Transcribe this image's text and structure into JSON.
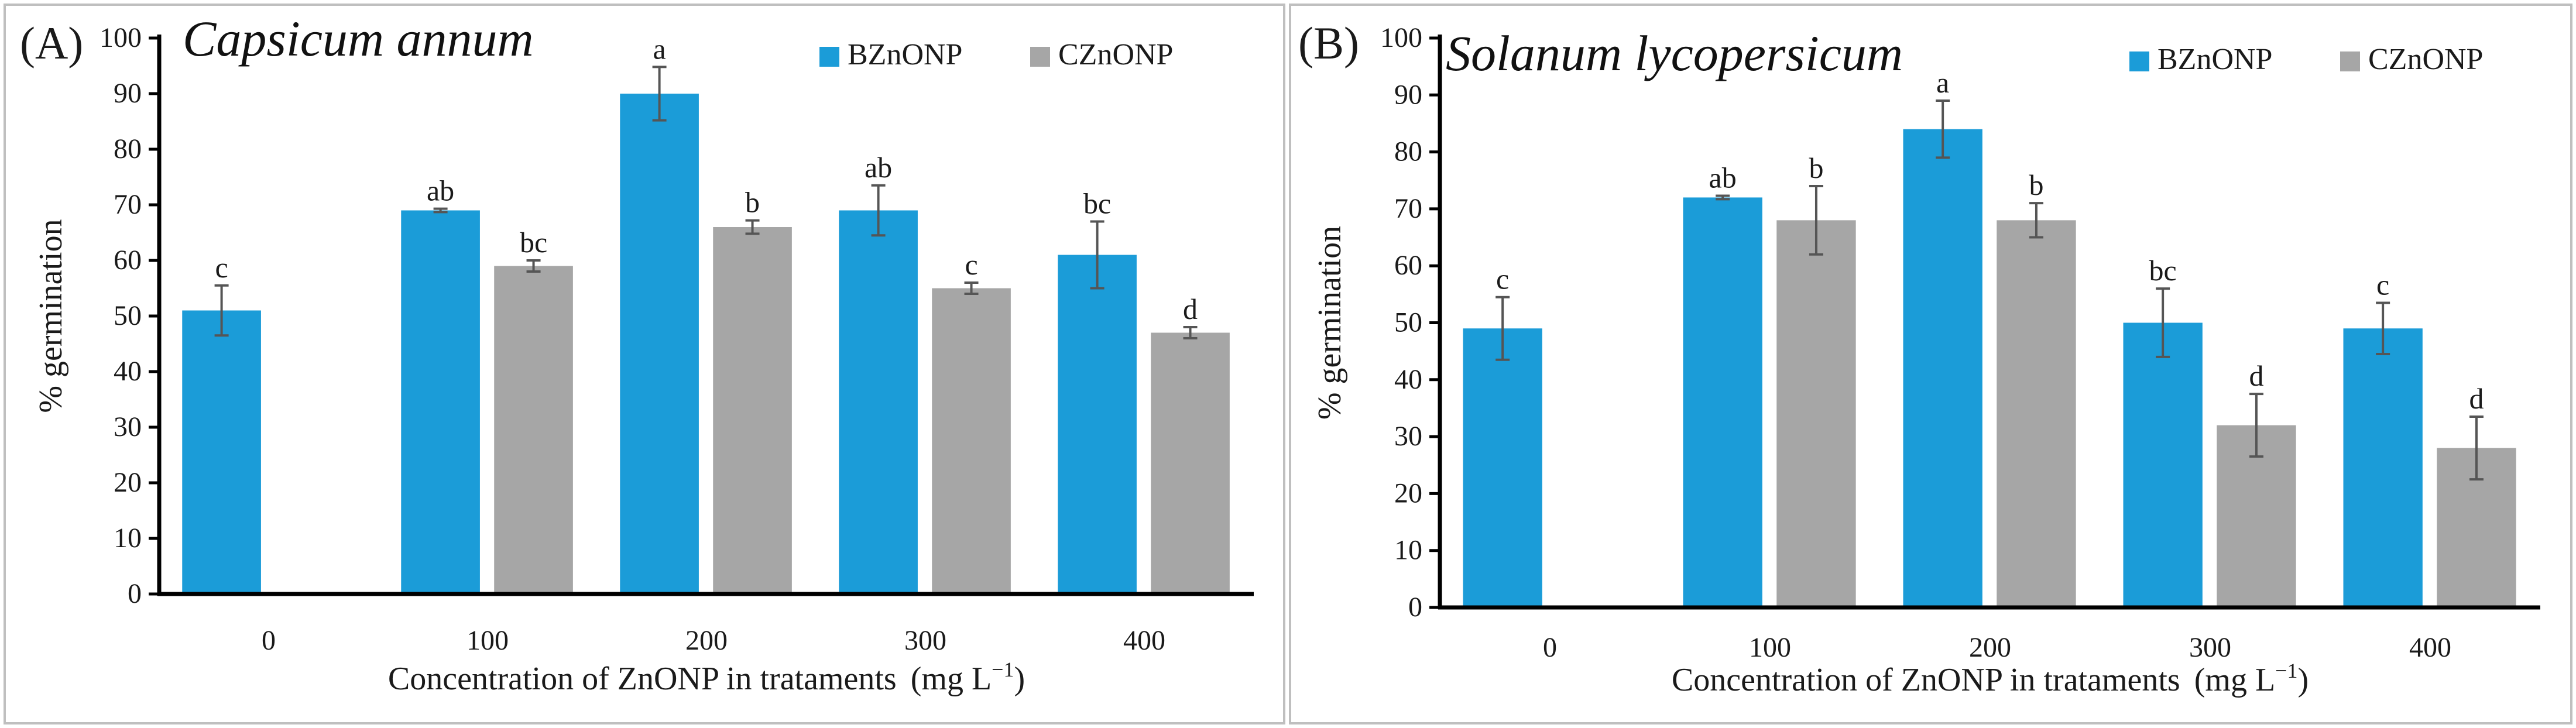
{
  "chart_data": [
    {
      "type": "bar",
      "panel_label": "(A)",
      "title": "Capsicum annum",
      "xlabel": "Concentration of ZnONP in trataments",
      "xlabel_unit": "(mg L",
      "xlabel_unit_sup": "−1",
      "xlabel_unit_close": ")",
      "ylabel": "% germination",
      "ylim": [
        0,
        100
      ],
      "yticks": [
        "0",
        "10",
        "20",
        "30",
        "40",
        "50",
        "60",
        "70",
        "80",
        "90",
        "100"
      ],
      "grid": false,
      "legend_position": "top-right",
      "categories": [
        "0",
        "100",
        "200",
        "300",
        "400"
      ],
      "series": [
        {
          "name": "BZnONP",
          "color": "#1b9cd8",
          "values": [
            51,
            69,
            90,
            69,
            61
          ],
          "errors": [
            4.5,
            0.3,
            4.8,
            4.5,
            6.0
          ],
          "letters": [
            "c",
            "ab",
            "a",
            "ab",
            "bc"
          ]
        },
        {
          "name": "CZnONP",
          "color": "#a6a6a6",
          "values": [
            null,
            59,
            66,
            55,
            47
          ],
          "errors": [
            null,
            1.0,
            1.2,
            1.0,
            1.0
          ],
          "letters": [
            null,
            "bc",
            "b",
            "c",
            "d"
          ]
        }
      ]
    },
    {
      "type": "bar",
      "panel_label": "(B)",
      "title": "Solanum lycopersicum",
      "xlabel": "Concentration of ZnONP in trataments",
      "xlabel_unit": "(mg L",
      "xlabel_unit_sup": "−1",
      "xlabel_unit_close": ")",
      "ylabel": "% germination",
      "ylim": [
        0,
        100
      ],
      "yticks": [
        "0",
        "10",
        "20",
        "30",
        "40",
        "50",
        "60",
        "70",
        "80",
        "90",
        "100"
      ],
      "grid": false,
      "legend_position": "top-right",
      "categories": [
        "0",
        "100",
        "200",
        "300",
        "400"
      ],
      "series": [
        {
          "name": "BZnONP",
          "color": "#1b9cd8",
          "values": [
            49,
            72,
            84,
            50,
            49
          ],
          "errors": [
            5.5,
            0.3,
            5.0,
            6.0,
            4.5
          ],
          "letters": [
            "c",
            "ab",
            "a",
            "bc",
            "c"
          ]
        },
        {
          "name": "CZnONP",
          "color": "#a6a6a6",
          "values": [
            null,
            68,
            68,
            32,
            28
          ],
          "errors": [
            null,
            6.0,
            3.0,
            5.5,
            5.5
          ],
          "letters": [
            null,
            "b",
            "b",
            "d",
            "d"
          ]
        }
      ]
    }
  ]
}
